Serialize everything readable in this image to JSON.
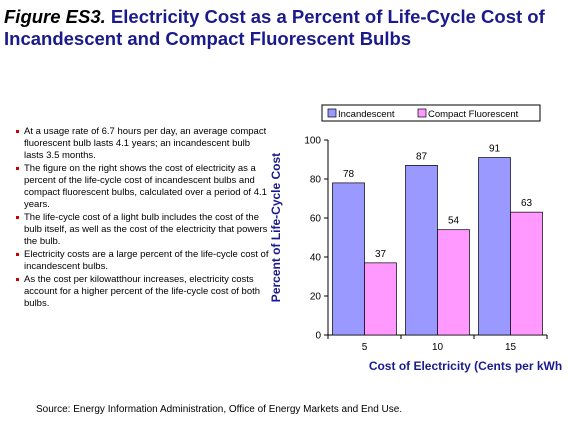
{
  "title": {
    "figure_label": "Figure ES3.",
    "text": "Electricity Cost as a Percent of Life-Cycle Cost of Incandescent and Compact Fluorescent Bulbs"
  },
  "bullets": [
    "At a usage rate of 6.7 hours per day, an average compact fluorescent bulb lasts 4.1 years;  an incandescent bulb lasts 3.5 months.",
    "The figure on the right shows the cost of electricity as a percent of the life-cycle cost of incandescent bulbs and compact fluorescent bulbs, calculated over a period of 4.1 years.",
    "The life-cycle cost of a light bulb includes the cost of the bulb itself, as well as the cost of the electricity that powers the bulb.",
    "Electricity costs are a large percent of the life-cycle cost of incandescent bulbs.",
    "As the cost per kilowatthour increases, electricity costs account for a higher percent of the life-cycle cost of both bulbs."
  ],
  "source": "Source:  Energy Information Administration, Office of Energy Markets and End Use.",
  "colors": {
    "title": "#1a1a8c",
    "bullet_marker": "#cc0000",
    "incandescent": "#9999ff",
    "compact_fluorescent": "#ff99ff",
    "axis_label": "#1a1a8c"
  },
  "chart_data": {
    "type": "bar",
    "categories": [
      "5",
      "10",
      "15"
    ],
    "series": [
      {
        "name": "Incandescent",
        "values": [
          78,
          87,
          91
        ]
      },
      {
        "name": "Compact Fluorescent",
        "values": [
          37,
          54,
          63
        ]
      }
    ],
    "xlabel": "Cost of Electricity (Cents per kWh)",
    "ylabel": "Percent of Life-Cycle Cost",
    "ylim": [
      0,
      100
    ],
    "yticks": [
      0,
      20,
      40,
      60,
      80,
      100
    ],
    "legend_position": "top",
    "grid": false,
    "data_labels": true
  }
}
